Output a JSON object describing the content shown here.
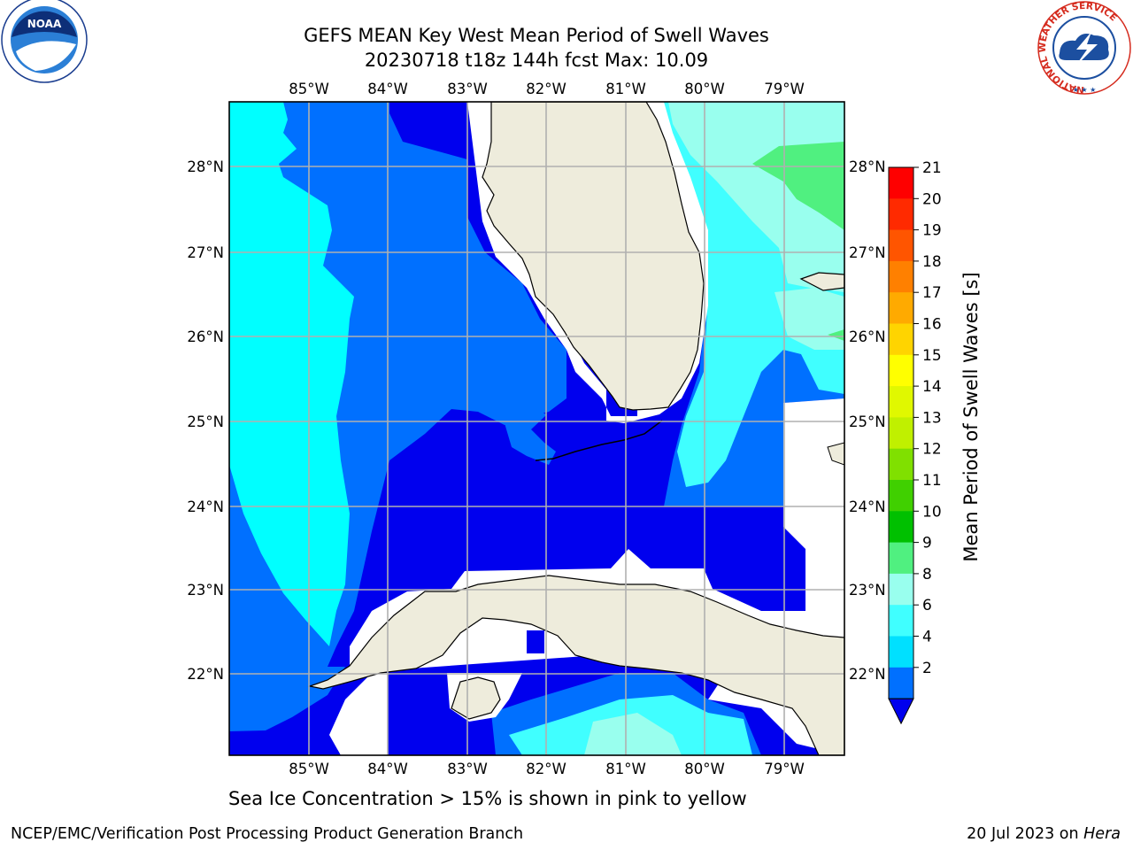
{
  "title_line1": "GEFS MEAN Key West Mean Period of Swell Waves",
  "title_line2": "20230718 t18z 144h fcst   Max: 10.09",
  "footer_note": "Sea Ice Concentration > 15% is shown in pink to yellow",
  "credit_left": "NCEP/EMC/Verification Post Processing Product Generation Branch",
  "credit_right_prefix": "20 Jul 2023 on ",
  "credit_right_host": "Hera",
  "map": {
    "lon_labels": [
      "85°W",
      "84°W",
      "83°W",
      "82°W",
      "81°W",
      "80°W",
      "79°W"
    ],
    "lat_labels": [
      "28°N",
      "27°N",
      "26°N",
      "25°N",
      "24°N",
      "23°N",
      "22°N"
    ],
    "land_color": "#eeecdc",
    "grid_color": "#b0b0b0"
  },
  "colorbar": {
    "label": "Mean Period of Swell Waves [s]",
    "ticks": [
      "21",
      "20",
      "19",
      "18",
      "17",
      "16",
      "15",
      "14",
      "13",
      "12",
      "11",
      "10",
      "9",
      "8",
      "6",
      "4",
      "2"
    ],
    "colors": [
      "#fe0000",
      "#ff2a00",
      "#ff5500",
      "#ff8000",
      "#ffaa00",
      "#ffd400",
      "#ffff00",
      "#e0f800",
      "#c0f000",
      "#80e000",
      "#40d000",
      "#00c000",
      "#50f080",
      "#99ffee",
      "#40ffff",
      "#00e0ff",
      "#0070ff"
    ],
    "extend_color": "#0000ee"
  },
  "logos": {
    "noaa": "NOAA",
    "nws_ring": "NATIONAL WEATHER SERVICE"
  }
}
